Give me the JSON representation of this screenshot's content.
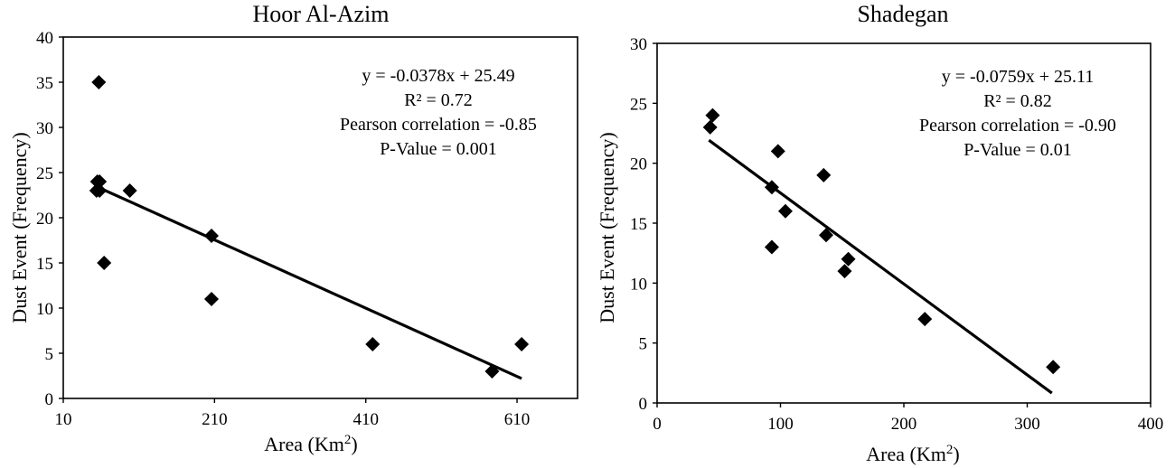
{
  "chart_data": [
    {
      "type": "scatter",
      "title": "Hoor Al-Azim",
      "xlabel": "Area (Km",
      "xlabel_sup": "2",
      "xlabel_end": ")",
      "ylabel": "Dust Event (Frequency)",
      "xlim": [
        10,
        690
      ],
      "ylim": [
        0,
        40
      ],
      "xticks": [
        10,
        210,
        410,
        610
      ],
      "yticks": [
        0,
        5,
        10,
        15,
        20,
        25,
        30,
        35,
        40
      ],
      "points": [
        {
          "x": 54,
          "y": 23
        },
        {
          "x": 55,
          "y": 24
        },
        {
          "x": 57,
          "y": 35
        },
        {
          "x": 58,
          "y": 24
        },
        {
          "x": 58,
          "y": 23
        },
        {
          "x": 64,
          "y": 15
        },
        {
          "x": 98,
          "y": 23
        },
        {
          "x": 206,
          "y": 18
        },
        {
          "x": 206,
          "y": 11
        },
        {
          "x": 419,
          "y": 6
        },
        {
          "x": 577,
          "y": 3
        },
        {
          "x": 616,
          "y": 6
        }
      ],
      "trendline": {
        "slope": -0.0378,
        "intercept": 25.49,
        "x_range": [
          54,
          616
        ]
      },
      "annotations": [
        "y = -0.0378x + 25.49",
        "R² = 0.72",
        "Pearson correlation = -0.85",
        "P-Value = 0.001"
      ],
      "grid": false,
      "marker": "diamond",
      "color": "#000000"
    },
    {
      "type": "scatter",
      "title": "Shadegan",
      "xlabel": "Area (Km",
      "xlabel_sup": "2",
      "xlabel_end": ")",
      "ylabel": "Dust Event (Frequency)",
      "xlim": [
        0,
        400
      ],
      "ylim": [
        0,
        30
      ],
      "xticks": [
        0,
        100,
        200,
        300,
        400
      ],
      "yticks": [
        0,
        5,
        10,
        15,
        20,
        25,
        30
      ],
      "points": [
        {
          "x": 43,
          "y": 23
        },
        {
          "x": 45,
          "y": 24
        },
        {
          "x": 93,
          "y": 18
        },
        {
          "x": 93,
          "y": 13
        },
        {
          "x": 98,
          "y": 21
        },
        {
          "x": 104,
          "y": 16
        },
        {
          "x": 135,
          "y": 19
        },
        {
          "x": 137,
          "y": 14
        },
        {
          "x": 152,
          "y": 11
        },
        {
          "x": 155,
          "y": 12
        },
        {
          "x": 217,
          "y": 7
        },
        {
          "x": 321,
          "y": 3
        }
      ],
      "trendline": {
        "slope": -0.0759,
        "intercept": 25.11,
        "x_range": [
          42,
          320
        ]
      },
      "annotations": [
        "y = -0.0759x + 25.11",
        "R² = 0.82",
        "Pearson correlation = -0.90",
        "P-Value = 0.01"
      ],
      "grid": false,
      "marker": "diamond",
      "color": "#000000"
    }
  ]
}
